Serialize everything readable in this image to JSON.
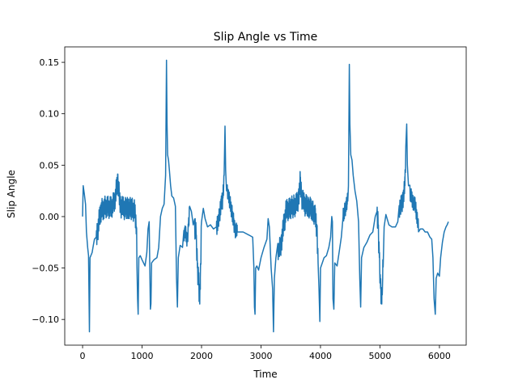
{
  "chart_data": {
    "type": "line",
    "title": "Slip Angle vs Time",
    "xlabel": "Time",
    "ylabel": "Slip Angle",
    "xlim": [
      -300,
      6450
    ],
    "ylim": [
      -0.125,
      0.165
    ],
    "x_ticks": [
      0,
      1000,
      2000,
      3000,
      4000,
      5000,
      6000
    ],
    "x_tick_labels": [
      "0",
      "1000",
      "2000",
      "3000",
      "4000",
      "5000",
      "6000"
    ],
    "y_ticks": [
      -0.1,
      -0.05,
      0.0,
      0.05,
      0.1,
      0.15
    ],
    "y_tick_labels": [
      "−0.10",
      "−0.05",
      "0.00",
      "0.05",
      "0.10",
      "0.15"
    ],
    "grid": false,
    "legend": "none",
    "series": [
      {
        "color": "#1f77b4",
        "points": [
          [
            0,
            0.0
          ],
          [
            10,
            0.03
          ],
          [
            30,
            0.022
          ],
          [
            50,
            0.012
          ],
          [
            65,
            -0.015
          ],
          [
            85,
            -0.03
          ],
          [
            100,
            -0.038
          ],
          [
            115,
            -0.112
          ],
          [
            125,
            -0.04
          ],
          [
            160,
            -0.035
          ],
          [
            180,
            -0.028
          ],
          [
            200,
            -0.022
          ],
          [
            230,
            -0.02
          ],
          [
            250,
            -0.015
          ],
          [
            300,
            0.005
          ],
          [
            350,
            0.008
          ],
          [
            400,
            0.01
          ],
          [
            450,
            0.009
          ],
          [
            500,
            0.01
          ],
          [
            550,
            0.018
          ],
          [
            590,
            0.036
          ],
          [
            610,
            0.025
          ],
          [
            640,
            0.01
          ],
          [
            680,
            0.008
          ],
          [
            750,
            0.008
          ],
          [
            820,
            0.008
          ],
          [
            880,
            0.005
          ],
          [
            905,
            -0.01
          ],
          [
            925,
            -0.08
          ],
          [
            935,
            -0.095
          ],
          [
            945,
            -0.04
          ],
          [
            970,
            -0.038
          ],
          [
            1000,
            -0.042
          ],
          [
            1050,
            -0.048
          ],
          [
            1080,
            -0.035
          ],
          [
            1100,
            -0.012
          ],
          [
            1120,
            -0.005
          ],
          [
            1140,
            -0.09
          ],
          [
            1150,
            -0.085
          ],
          [
            1160,
            -0.045
          ],
          [
            1200,
            -0.042
          ],
          [
            1250,
            -0.04
          ],
          [
            1280,
            -0.03
          ],
          [
            1310,
            0.0
          ],
          [
            1340,
            0.008
          ],
          [
            1370,
            0.012
          ],
          [
            1395,
            0.04
          ],
          [
            1410,
            0.152
          ],
          [
            1420,
            0.09
          ],
          [
            1430,
            0.06
          ],
          [
            1445,
            0.055
          ],
          [
            1460,
            0.045
          ],
          [
            1480,
            0.03
          ],
          [
            1500,
            0.02
          ],
          [
            1530,
            0.018
          ],
          [
            1560,
            0.01
          ],
          [
            1580,
            -0.06
          ],
          [
            1595,
            -0.088
          ],
          [
            1610,
            -0.04
          ],
          [
            1640,
            -0.028
          ],
          [
            1680,
            -0.03
          ],
          [
            1720,
            -0.015
          ],
          [
            1760,
            -0.022
          ],
          [
            1780,
            -0.01
          ],
          [
            1800,
            0.01
          ],
          [
            1830,
            0.005
          ],
          [
            1860,
            -0.008
          ],
          [
            1890,
            -0.01
          ],
          [
            1910,
            -0.02
          ],
          [
            1930,
            -0.05
          ],
          [
            1950,
            -0.06
          ],
          [
            1970,
            -0.085
          ],
          [
            1980,
            -0.06
          ],
          [
            2000,
            -0.005
          ],
          [
            2030,
            0.008
          ],
          [
            2060,
            -0.002
          ],
          [
            2100,
            -0.01
          ],
          [
            2150,
            -0.008
          ],
          [
            2200,
            -0.012
          ],
          [
            2250,
            -0.01
          ],
          [
            2280,
            -0.008
          ],
          [
            2300,
            0.0
          ],
          [
            2330,
            0.01
          ],
          [
            2360,
            0.018
          ],
          [
            2380,
            0.04
          ],
          [
            2395,
            0.088
          ],
          [
            2405,
            0.045
          ],
          [
            2420,
            0.025
          ],
          [
            2450,
            0.02
          ],
          [
            2480,
            0.012
          ],
          [
            2510,
            0.006
          ],
          [
            2540,
            -0.005
          ],
          [
            2560,
            -0.012
          ],
          [
            2600,
            -0.015
          ],
          [
            2700,
            -0.015
          ],
          [
            2800,
            -0.018
          ],
          [
            2860,
            -0.02
          ],
          [
            2880,
            -0.05
          ],
          [
            2890,
            -0.088
          ],
          [
            2900,
            -0.095
          ],
          [
            2910,
            -0.05
          ],
          [
            2930,
            -0.048
          ],
          [
            2960,
            -0.052
          ],
          [
            3000,
            -0.04
          ],
          [
            3050,
            -0.03
          ],
          [
            3100,
            -0.022
          ],
          [
            3120,
            -0.002
          ],
          [
            3140,
            -0.01
          ],
          [
            3170,
            -0.05
          ],
          [
            3195,
            -0.07
          ],
          [
            3210,
            -0.112
          ],
          [
            3225,
            -0.06
          ],
          [
            3250,
            -0.04
          ],
          [
            3300,
            -0.035
          ],
          [
            3340,
            -0.025
          ],
          [
            3380,
            -0.01
          ],
          [
            3420,
            0.005
          ],
          [
            3480,
            0.008
          ],
          [
            3550,
            0.01
          ],
          [
            3600,
            0.012
          ],
          [
            3630,
            0.018
          ],
          [
            3660,
            0.035
          ],
          [
            3680,
            0.02
          ],
          [
            3720,
            0.012
          ],
          [
            3800,
            0.01
          ],
          [
            3870,
            0.006
          ],
          [
            3910,
            0.0
          ],
          [
            3940,
            -0.015
          ],
          [
            3960,
            -0.045
          ],
          [
            3975,
            -0.07
          ],
          [
            3990,
            -0.102
          ],
          [
            4000,
            -0.05
          ],
          [
            4030,
            -0.045
          ],
          [
            4060,
            -0.04
          ],
          [
            4100,
            -0.038
          ],
          [
            4140,
            -0.03
          ],
          [
            4170,
            -0.02
          ],
          [
            4190,
            0.0
          ],
          [
            4200,
            -0.005
          ],
          [
            4210,
            -0.08
          ],
          [
            4225,
            -0.09
          ],
          [
            4240,
            -0.045
          ],
          [
            4280,
            -0.048
          ],
          [
            4320,
            -0.032
          ],
          [
            4350,
            -0.02
          ],
          [
            4380,
            0.0
          ],
          [
            4410,
            0.008
          ],
          [
            4450,
            0.012
          ],
          [
            4470,
            0.03
          ],
          [
            4485,
            0.148
          ],
          [
            4495,
            0.09
          ],
          [
            4510,
            0.06
          ],
          [
            4530,
            0.055
          ],
          [
            4550,
            0.04
          ],
          [
            4580,
            0.025
          ],
          [
            4610,
            0.015
          ],
          [
            4640,
            -0.005
          ],
          [
            4660,
            -0.06
          ],
          [
            4675,
            -0.088
          ],
          [
            4690,
            -0.04
          ],
          [
            4730,
            -0.03
          ],
          [
            4780,
            -0.025
          ],
          [
            4830,
            -0.018
          ],
          [
            4880,
            -0.015
          ],
          [
            4920,
            0.0
          ],
          [
            4950,
            0.005
          ],
          [
            4970,
            -0.01
          ],
          [
            4990,
            -0.04
          ],
          [
            5010,
            -0.07
          ],
          [
            5030,
            -0.085
          ],
          [
            5045,
            -0.06
          ],
          [
            5070,
            -0.01
          ],
          [
            5100,
            0.002
          ],
          [
            5150,
            -0.008
          ],
          [
            5200,
            -0.01
          ],
          [
            5260,
            -0.01
          ],
          [
            5300,
            -0.005
          ],
          [
            5340,
            0.008
          ],
          [
            5380,
            0.015
          ],
          [
            5420,
            0.03
          ],
          [
            5450,
            0.09
          ],
          [
            5460,
            0.05
          ],
          [
            5480,
            0.03
          ],
          [
            5510,
            0.022
          ],
          [
            5550,
            0.015
          ],
          [
            5600,
            0.01
          ],
          [
            5640,
            -0.01
          ],
          [
            5680,
            -0.012
          ],
          [
            5720,
            -0.012
          ],
          [
            5760,
            -0.015
          ],
          [
            5800,
            -0.015
          ],
          [
            5840,
            -0.02
          ],
          [
            5870,
            -0.022
          ],
          [
            5890,
            -0.04
          ],
          [
            5910,
            -0.08
          ],
          [
            5930,
            -0.095
          ],
          [
            5945,
            -0.06
          ],
          [
            5970,
            -0.055
          ],
          [
            6000,
            -0.058
          ],
          [
            6020,
            -0.04
          ],
          [
            6050,
            -0.025
          ],
          [
            6080,
            -0.015
          ],
          [
            6110,
            -0.01
          ],
          [
            6130,
            -0.008
          ],
          [
            6150,
            -0.005
          ]
        ],
        "oscillation_bands": [
          {
            "start": 230,
            "end": 920,
            "amplitude": 0.011
          },
          {
            "start": 1700,
            "end": 1800,
            "amplitude": 0.008
          },
          {
            "start": 1880,
            "end": 2000,
            "amplitude": 0.012
          },
          {
            "start": 2250,
            "end": 2380,
            "amplitude": 0.01
          },
          {
            "start": 2430,
            "end": 2600,
            "amplitude": 0.008
          },
          {
            "start": 3280,
            "end": 3960,
            "amplitude": 0.011
          },
          {
            "start": 4380,
            "end": 4460,
            "amplitude": 0.008
          },
          {
            "start": 4950,
            "end": 5060,
            "amplitude": 0.012
          },
          {
            "start": 5320,
            "end": 5440,
            "amplitude": 0.01
          },
          {
            "start": 5500,
            "end": 5650,
            "amplitude": 0.008
          }
        ]
      }
    ]
  }
}
